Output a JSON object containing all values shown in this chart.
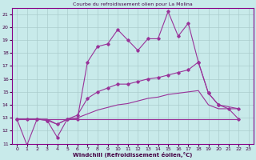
{
  "title": "Courbe du refroidissement olien pour La Molina",
  "xlabel": "Windchill (Refroidissement éolien,°C)",
  "bg_color": "#c8eaea",
  "grid_color": "#aacccc",
  "line_color": "#993399",
  "xlim": [
    -0.5,
    23.5
  ],
  "ylim": [
    11,
    21.5
  ],
  "xticks": [
    0,
    1,
    2,
    3,
    4,
    5,
    6,
    7,
    8,
    9,
    10,
    11,
    12,
    13,
    14,
    15,
    16,
    17,
    18,
    19,
    20,
    21,
    22,
    23
  ],
  "yticks": [
    11,
    12,
    13,
    14,
    15,
    16,
    17,
    18,
    19,
    20,
    21
  ],
  "line1_x": [
    0,
    1,
    2,
    3,
    4,
    5,
    6,
    7,
    8,
    9,
    10,
    11,
    12,
    13,
    14,
    15,
    16,
    17,
    18,
    19,
    20,
    21,
    22
  ],
  "line1_y": [
    12.9,
    10.9,
    12.9,
    12.8,
    12.5,
    12.9,
    12.9,
    17.3,
    18.5,
    18.7,
    19.8,
    19.0,
    18.2,
    19.1,
    19.1,
    21.2,
    19.3,
    20.3,
    17.3,
    14.9,
    14.0,
    13.7,
    12.9
  ],
  "line2_x": [
    0,
    1,
    2,
    3,
    4,
    5,
    6,
    7,
    8,
    9,
    10,
    11,
    12,
    13,
    14,
    15,
    16,
    17,
    18,
    19,
    20,
    22
  ],
  "line2_y": [
    12.9,
    12.9,
    12.9,
    12.8,
    11.5,
    12.9,
    13.2,
    14.5,
    15.0,
    15.3,
    15.6,
    15.6,
    15.8,
    16.0,
    16.1,
    16.3,
    16.5,
    16.7,
    17.3,
    14.9,
    14.0,
    13.7
  ],
  "line3_x": [
    0,
    1,
    2,
    3,
    4,
    5,
    6,
    7,
    8,
    9,
    10,
    11,
    12,
    13,
    14,
    15,
    16,
    17,
    18,
    19,
    20,
    22
  ],
  "line3_y": [
    12.9,
    12.9,
    12.9,
    12.9,
    12.5,
    12.9,
    13.0,
    13.3,
    13.6,
    13.8,
    14.0,
    14.1,
    14.3,
    14.5,
    14.6,
    14.8,
    14.9,
    15.0,
    15.1,
    14.0,
    13.7,
    13.7
  ],
  "line4_x": [
    0,
    1,
    2,
    3,
    4,
    5,
    6,
    7,
    8,
    9,
    10,
    11,
    12,
    13,
    14,
    15,
    16,
    17,
    18,
    22
  ],
  "line4_y": [
    12.9,
    12.9,
    12.9,
    12.9,
    12.9,
    12.9,
    12.9,
    12.9,
    12.9,
    12.9,
    12.9,
    12.9,
    12.9,
    12.9,
    12.9,
    12.9,
    12.9,
    12.9,
    12.9,
    12.9
  ]
}
